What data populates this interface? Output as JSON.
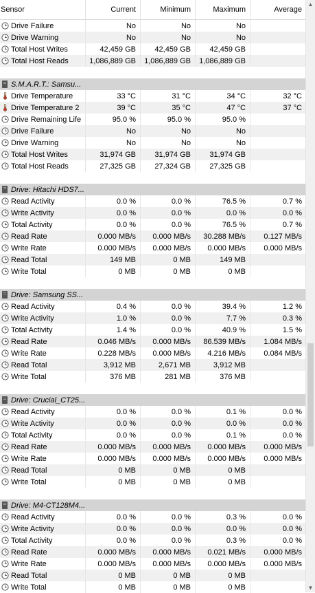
{
  "header": {
    "sensor": "Sensor",
    "current": "Current",
    "minimum": "Minimum",
    "maximum": "Maximum",
    "average": "Average"
  },
  "rows": [
    {
      "type": "item",
      "icon": "clock-icon",
      "name": "Drive Failure",
      "cur": "No",
      "min": "No",
      "max": "No",
      "avg": ""
    },
    {
      "type": "item",
      "icon": "clock-icon",
      "name": "Drive Warning",
      "cur": "No",
      "min": "No",
      "max": "No",
      "avg": ""
    },
    {
      "type": "item",
      "icon": "clock-icon",
      "name": "Total Host Writes",
      "cur": "42,459 GB",
      "min": "42,459 GB",
      "max": "42,459 GB",
      "avg": ""
    },
    {
      "type": "item",
      "icon": "clock-icon",
      "name": "Total Host Reads",
      "cur": "1,086,889 GB",
      "min": "1,086,889 GB",
      "max": "1,086,889 GB",
      "avg": ""
    },
    {
      "type": "blank"
    },
    {
      "type": "group",
      "icon": "drive-icon",
      "name": "S.M.A.R.T.: Samsu..."
    },
    {
      "type": "item",
      "icon": "thermometer-icon",
      "name": "Drive Temperature",
      "cur": "33 °C",
      "min": "31 °C",
      "max": "34 °C",
      "avg": "32 °C"
    },
    {
      "type": "item",
      "icon": "thermometer-icon",
      "name": "Drive Temperature 2",
      "cur": "39 °C",
      "min": "35 °C",
      "max": "47 °C",
      "avg": "37 °C"
    },
    {
      "type": "item",
      "icon": "clock-icon",
      "name": "Drive Remaining Life",
      "cur": "95.0 %",
      "min": "95.0 %",
      "max": "95.0 %",
      "avg": ""
    },
    {
      "type": "item",
      "icon": "clock-icon",
      "name": "Drive Failure",
      "cur": "No",
      "min": "No",
      "max": "No",
      "avg": ""
    },
    {
      "type": "item",
      "icon": "clock-icon",
      "name": "Drive Warning",
      "cur": "No",
      "min": "No",
      "max": "No",
      "avg": ""
    },
    {
      "type": "item",
      "icon": "clock-icon",
      "name": "Total Host Writes",
      "cur": "31,974 GB",
      "min": "31,974 GB",
      "max": "31,974 GB",
      "avg": ""
    },
    {
      "type": "item",
      "icon": "clock-icon",
      "name": "Total Host Reads",
      "cur": "27,325 GB",
      "min": "27,324 GB",
      "max": "27,325 GB",
      "avg": ""
    },
    {
      "type": "blank"
    },
    {
      "type": "group",
      "icon": "drive-icon",
      "name": "Drive: Hitachi HDS7..."
    },
    {
      "type": "item",
      "icon": "clock-icon",
      "name": "Read Activity",
      "cur": "0.0 %",
      "min": "0.0 %",
      "max": "76.5 %",
      "avg": "0.7 %"
    },
    {
      "type": "item",
      "icon": "clock-icon",
      "name": "Write Activity",
      "cur": "0.0 %",
      "min": "0.0 %",
      "max": "0.0 %",
      "avg": "0.0 %"
    },
    {
      "type": "item",
      "icon": "clock-icon",
      "name": "Total Activity",
      "cur": "0.0 %",
      "min": "0.0 %",
      "max": "76.5 %",
      "avg": "0.7 %"
    },
    {
      "type": "item",
      "icon": "clock-icon",
      "name": "Read Rate",
      "cur": "0.000 MB/s",
      "min": "0.000 MB/s",
      "max": "30.288 MB/s",
      "avg": "0.127 MB/s"
    },
    {
      "type": "item",
      "icon": "clock-icon",
      "name": "Write Rate",
      "cur": "0.000 MB/s",
      "min": "0.000 MB/s",
      "max": "0.000 MB/s",
      "avg": "0.000 MB/s"
    },
    {
      "type": "item",
      "icon": "clock-icon",
      "name": "Read Total",
      "cur": "149 MB",
      "min": "0 MB",
      "max": "149 MB",
      "avg": ""
    },
    {
      "type": "item",
      "icon": "clock-icon",
      "name": "Write Total",
      "cur": "0 MB",
      "min": "0 MB",
      "max": "0 MB",
      "avg": ""
    },
    {
      "type": "blank"
    },
    {
      "type": "group",
      "icon": "drive-icon",
      "name": "Drive: Samsung SS..."
    },
    {
      "type": "item",
      "icon": "clock-icon",
      "name": "Read Activity",
      "cur": "0.4 %",
      "min": "0.0 %",
      "max": "39.4 %",
      "avg": "1.2 %"
    },
    {
      "type": "item",
      "icon": "clock-icon",
      "name": "Write Activity",
      "cur": "1.0 %",
      "min": "0.0 %",
      "max": "7.7 %",
      "avg": "0.3 %"
    },
    {
      "type": "item",
      "icon": "clock-icon",
      "name": "Total Activity",
      "cur": "1.4 %",
      "min": "0.0 %",
      "max": "40.9 %",
      "avg": "1.5 %"
    },
    {
      "type": "item",
      "icon": "clock-icon",
      "name": "Read Rate",
      "cur": "0.046 MB/s",
      "min": "0.000 MB/s",
      "max": "86.539 MB/s",
      "avg": "1.084 MB/s"
    },
    {
      "type": "item",
      "icon": "clock-icon",
      "name": "Write Rate",
      "cur": "0.228 MB/s",
      "min": "0.000 MB/s",
      "max": "4.216 MB/s",
      "avg": "0.084 MB/s"
    },
    {
      "type": "item",
      "icon": "clock-icon",
      "name": "Read Total",
      "cur": "3,912 MB",
      "min": "2,671 MB",
      "max": "3,912 MB",
      "avg": ""
    },
    {
      "type": "item",
      "icon": "clock-icon",
      "name": "Write Total",
      "cur": "376 MB",
      "min": "281 MB",
      "max": "376 MB",
      "avg": ""
    },
    {
      "type": "blank"
    },
    {
      "type": "group",
      "icon": "drive-icon",
      "name": "Drive: Crucial_CT25..."
    },
    {
      "type": "item",
      "icon": "clock-icon",
      "name": "Read Activity",
      "cur": "0.0 %",
      "min": "0.0 %",
      "max": "0.1 %",
      "avg": "0.0 %"
    },
    {
      "type": "item",
      "icon": "clock-icon",
      "name": "Write Activity",
      "cur": "0.0 %",
      "min": "0.0 %",
      "max": "0.0 %",
      "avg": "0.0 %"
    },
    {
      "type": "item",
      "icon": "clock-icon",
      "name": "Total Activity",
      "cur": "0.0 %",
      "min": "0.0 %",
      "max": "0.1 %",
      "avg": "0.0 %"
    },
    {
      "type": "item",
      "icon": "clock-icon",
      "name": "Read Rate",
      "cur": "0.000 MB/s",
      "min": "0.000 MB/s",
      "max": "0.000 MB/s",
      "avg": "0.000 MB/s"
    },
    {
      "type": "item",
      "icon": "clock-icon",
      "name": "Write Rate",
      "cur": "0.000 MB/s",
      "min": "0.000 MB/s",
      "max": "0.000 MB/s",
      "avg": "0.000 MB/s"
    },
    {
      "type": "item",
      "icon": "clock-icon",
      "name": "Read Total",
      "cur": "0 MB",
      "min": "0 MB",
      "max": "0 MB",
      "avg": ""
    },
    {
      "type": "item",
      "icon": "clock-icon",
      "name": "Write Total",
      "cur": "0 MB",
      "min": "0 MB",
      "max": "0 MB",
      "avg": ""
    },
    {
      "type": "blank"
    },
    {
      "type": "group",
      "icon": "drive-icon",
      "name": "Drive: M4-CT128M4..."
    },
    {
      "type": "item",
      "icon": "clock-icon",
      "name": "Read Activity",
      "cur": "0.0 %",
      "min": "0.0 %",
      "max": "0.3 %",
      "avg": "0.0 %"
    },
    {
      "type": "item",
      "icon": "clock-icon",
      "name": "Write Activity",
      "cur": "0.0 %",
      "min": "0.0 %",
      "max": "0.0 %",
      "avg": "0.0 %"
    },
    {
      "type": "item",
      "icon": "clock-icon",
      "name": "Total Activity",
      "cur": "0.0 %",
      "min": "0.0 %",
      "max": "0.3 %",
      "avg": "0.0 %"
    },
    {
      "type": "item",
      "icon": "clock-icon",
      "name": "Read Rate",
      "cur": "0.000 MB/s",
      "min": "0.000 MB/s",
      "max": "0.021 MB/s",
      "avg": "0.000 MB/s"
    },
    {
      "type": "item",
      "icon": "clock-icon",
      "name": "Write Rate",
      "cur": "0.000 MB/s",
      "min": "0.000 MB/s",
      "max": "0.000 MB/s",
      "avg": "0.000 MB/s"
    },
    {
      "type": "item",
      "icon": "clock-icon",
      "name": "Read Total",
      "cur": "0 MB",
      "min": "0 MB",
      "max": "0 MB",
      "avg": ""
    },
    {
      "type": "item",
      "icon": "clock-icon",
      "name": "Write Total",
      "cur": "0 MB",
      "min": "0 MB",
      "max": "0 MB",
      "avg": ""
    }
  ],
  "scrollbar": {
    "up_arrow": "▲",
    "down_arrow": "▼",
    "position": 0.71
  }
}
